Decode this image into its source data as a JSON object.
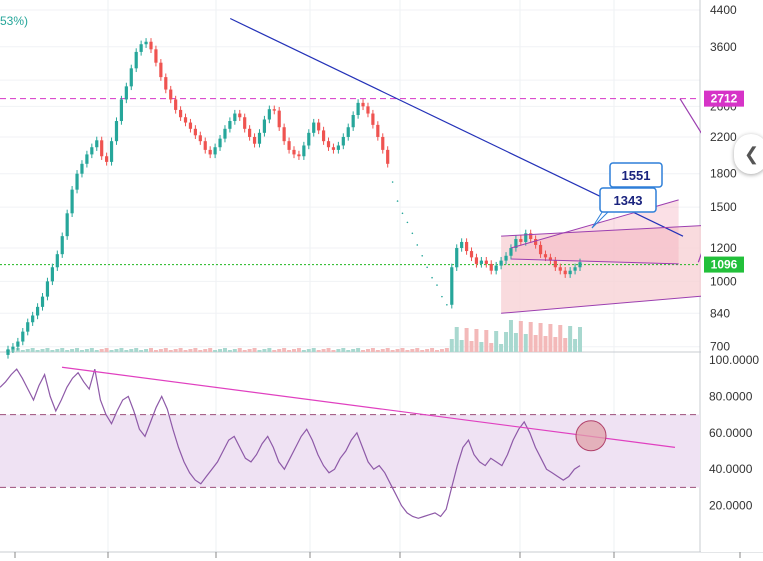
{
  "header": {
    "change_text": "53%)"
  },
  "ui": {
    "collapse_icon": "chevron-left-icon"
  },
  "colors": {
    "up": "#26a69a",
    "down": "#ef5350",
    "trendline": "#2432b8",
    "channel": "#9c3fb0",
    "resistance": "#d633c7",
    "support_line": "#1fb81f",
    "rsi_line": "#8e5aa8",
    "rsi_trend": "#e040c0",
    "rsi_band": "#efe2f3"
  },
  "chart_data": [
    {
      "type": "candlestick",
      "title": "",
      "y_scale": "log",
      "ylim": [
        680,
        4400
      ],
      "yticks": [
        700,
        840,
        1000,
        1200,
        1500,
        1800,
        2200,
        2600,
        3000,
        3600,
        4400
      ],
      "yticks_visible": [
        "4400",
        "3600",
        "2600",
        "2200",
        "1800",
        "1500",
        "1200",
        "1000",
        "840",
        "700"
      ],
      "price_labels": [
        {
          "value": 2712,
          "label": "2712",
          "color": "#d633c7"
        },
        {
          "value": 1096,
          "label": "1096",
          "color": "#22c03a"
        }
      ],
      "callouts": [
        {
          "value": 1551,
          "label": "1551"
        },
        {
          "value": 1343,
          "label": "1343"
        }
      ],
      "closes": [
        690,
        700,
        720,
        760,
        800,
        830,
        870,
        920,
        1000,
        1080,
        1160,
        1280,
        1450,
        1650,
        1800,
        1900,
        2000,
        2080,
        2160,
        1980,
        1920,
        2150,
        2400,
        2700,
        2900,
        3200,
        3500,
        3650,
        3700,
        3550,
        3300,
        3050,
        2850,
        2700,
        2550,
        2450,
        2380,
        2300,
        2220,
        2150,
        2050,
        2000,
        2080,
        2180,
        2300,
        2400,
        2500,
        2450,
        2300,
        2200,
        2120,
        2250,
        2420,
        2560,
        2540,
        2320,
        2150,
        2050,
        2000,
        1980,
        2100,
        2250,
        2380,
        2280,
        2150,
        2080,
        2050,
        2100,
        2200,
        2320,
        2480,
        2650,
        2600,
        2500,
        2350,
        2200,
        2050,
        1900,
        1720,
        1550,
        1450,
        1380,
        1300,
        1220,
        1150,
        1080,
        1020,
        980,
        920,
        880,
        1080,
        1200,
        1240,
        1180,
        1140,
        1100,
        1120,
        1100,
        1060,
        1090,
        1120,
        1150,
        1200,
        1260,
        1240,
        1300,
        1260,
        1220,
        1160,
        1140,
        1120,
        1080,
        1060,
        1040,
        1060,
        1080,
        1110
      ],
      "drawings": {
        "down_trendline": [
          [
            40,
            4200
          ],
          [
            156,
            1280
          ]
        ],
        "resistance_line": 2712,
        "support_line": 1096,
        "channel_upper": [
          [
            100,
            1280
          ],
          [
            156,
            1390
          ]
        ],
        "channel_lower": [
          [
            100,
            840
          ],
          [
            156,
            960
          ]
        ],
        "wedge_upper": [
          [
            102,
            1200
          ],
          [
            136,
            1560
          ]
        ],
        "wedge_lower": [
          [
            102,
            1130
          ],
          [
            136,
            1100
          ]
        ],
        "projection_path": [
          [
            140,
            1110
          ],
          [
            146,
            1551
          ],
          [
            152,
            1300
          ],
          [
            166,
            2712
          ]
        ]
      }
    },
    {
      "type": "line",
      "title": "",
      "ylim": [
        0,
        100
      ],
      "yticks_visible": [
        "100.0000",
        "80.0000",
        "60.0000",
        "40.0000",
        "20.0000"
      ],
      "band": [
        30,
        70
      ],
      "values": [
        85,
        88,
        92,
        95,
        90,
        84,
        78,
        86,
        92,
        80,
        72,
        78,
        85,
        90,
        93,
        88,
        84,
        95,
        78,
        70,
        65,
        72,
        78,
        80,
        72,
        62,
        58,
        66,
        74,
        80,
        73,
        62,
        52,
        44,
        38,
        34,
        32,
        36,
        40,
        44,
        50,
        56,
        58,
        52,
        46,
        44,
        48,
        54,
        58,
        52,
        44,
        40,
        46,
        52,
        58,
        62,
        56,
        48,
        42,
        38,
        40,
        46,
        50,
        56,
        60,
        52,
        44,
        40,
        42,
        38,
        32,
        26,
        20,
        16,
        14,
        13,
        14,
        15,
        16,
        14,
        18,
        30,
        42,
        52,
        56,
        48,
        44,
        42,
        46,
        44,
        42,
        48,
        56,
        62,
        66,
        60,
        52,
        46,
        40,
        38,
        36,
        34,
        36,
        40,
        42
      ],
      "rsi_trendline": [
        [
          14,
          96
        ],
        [
          168,
          52
        ]
      ],
      "marker": {
        "x": 146,
        "y": 60
      }
    }
  ]
}
